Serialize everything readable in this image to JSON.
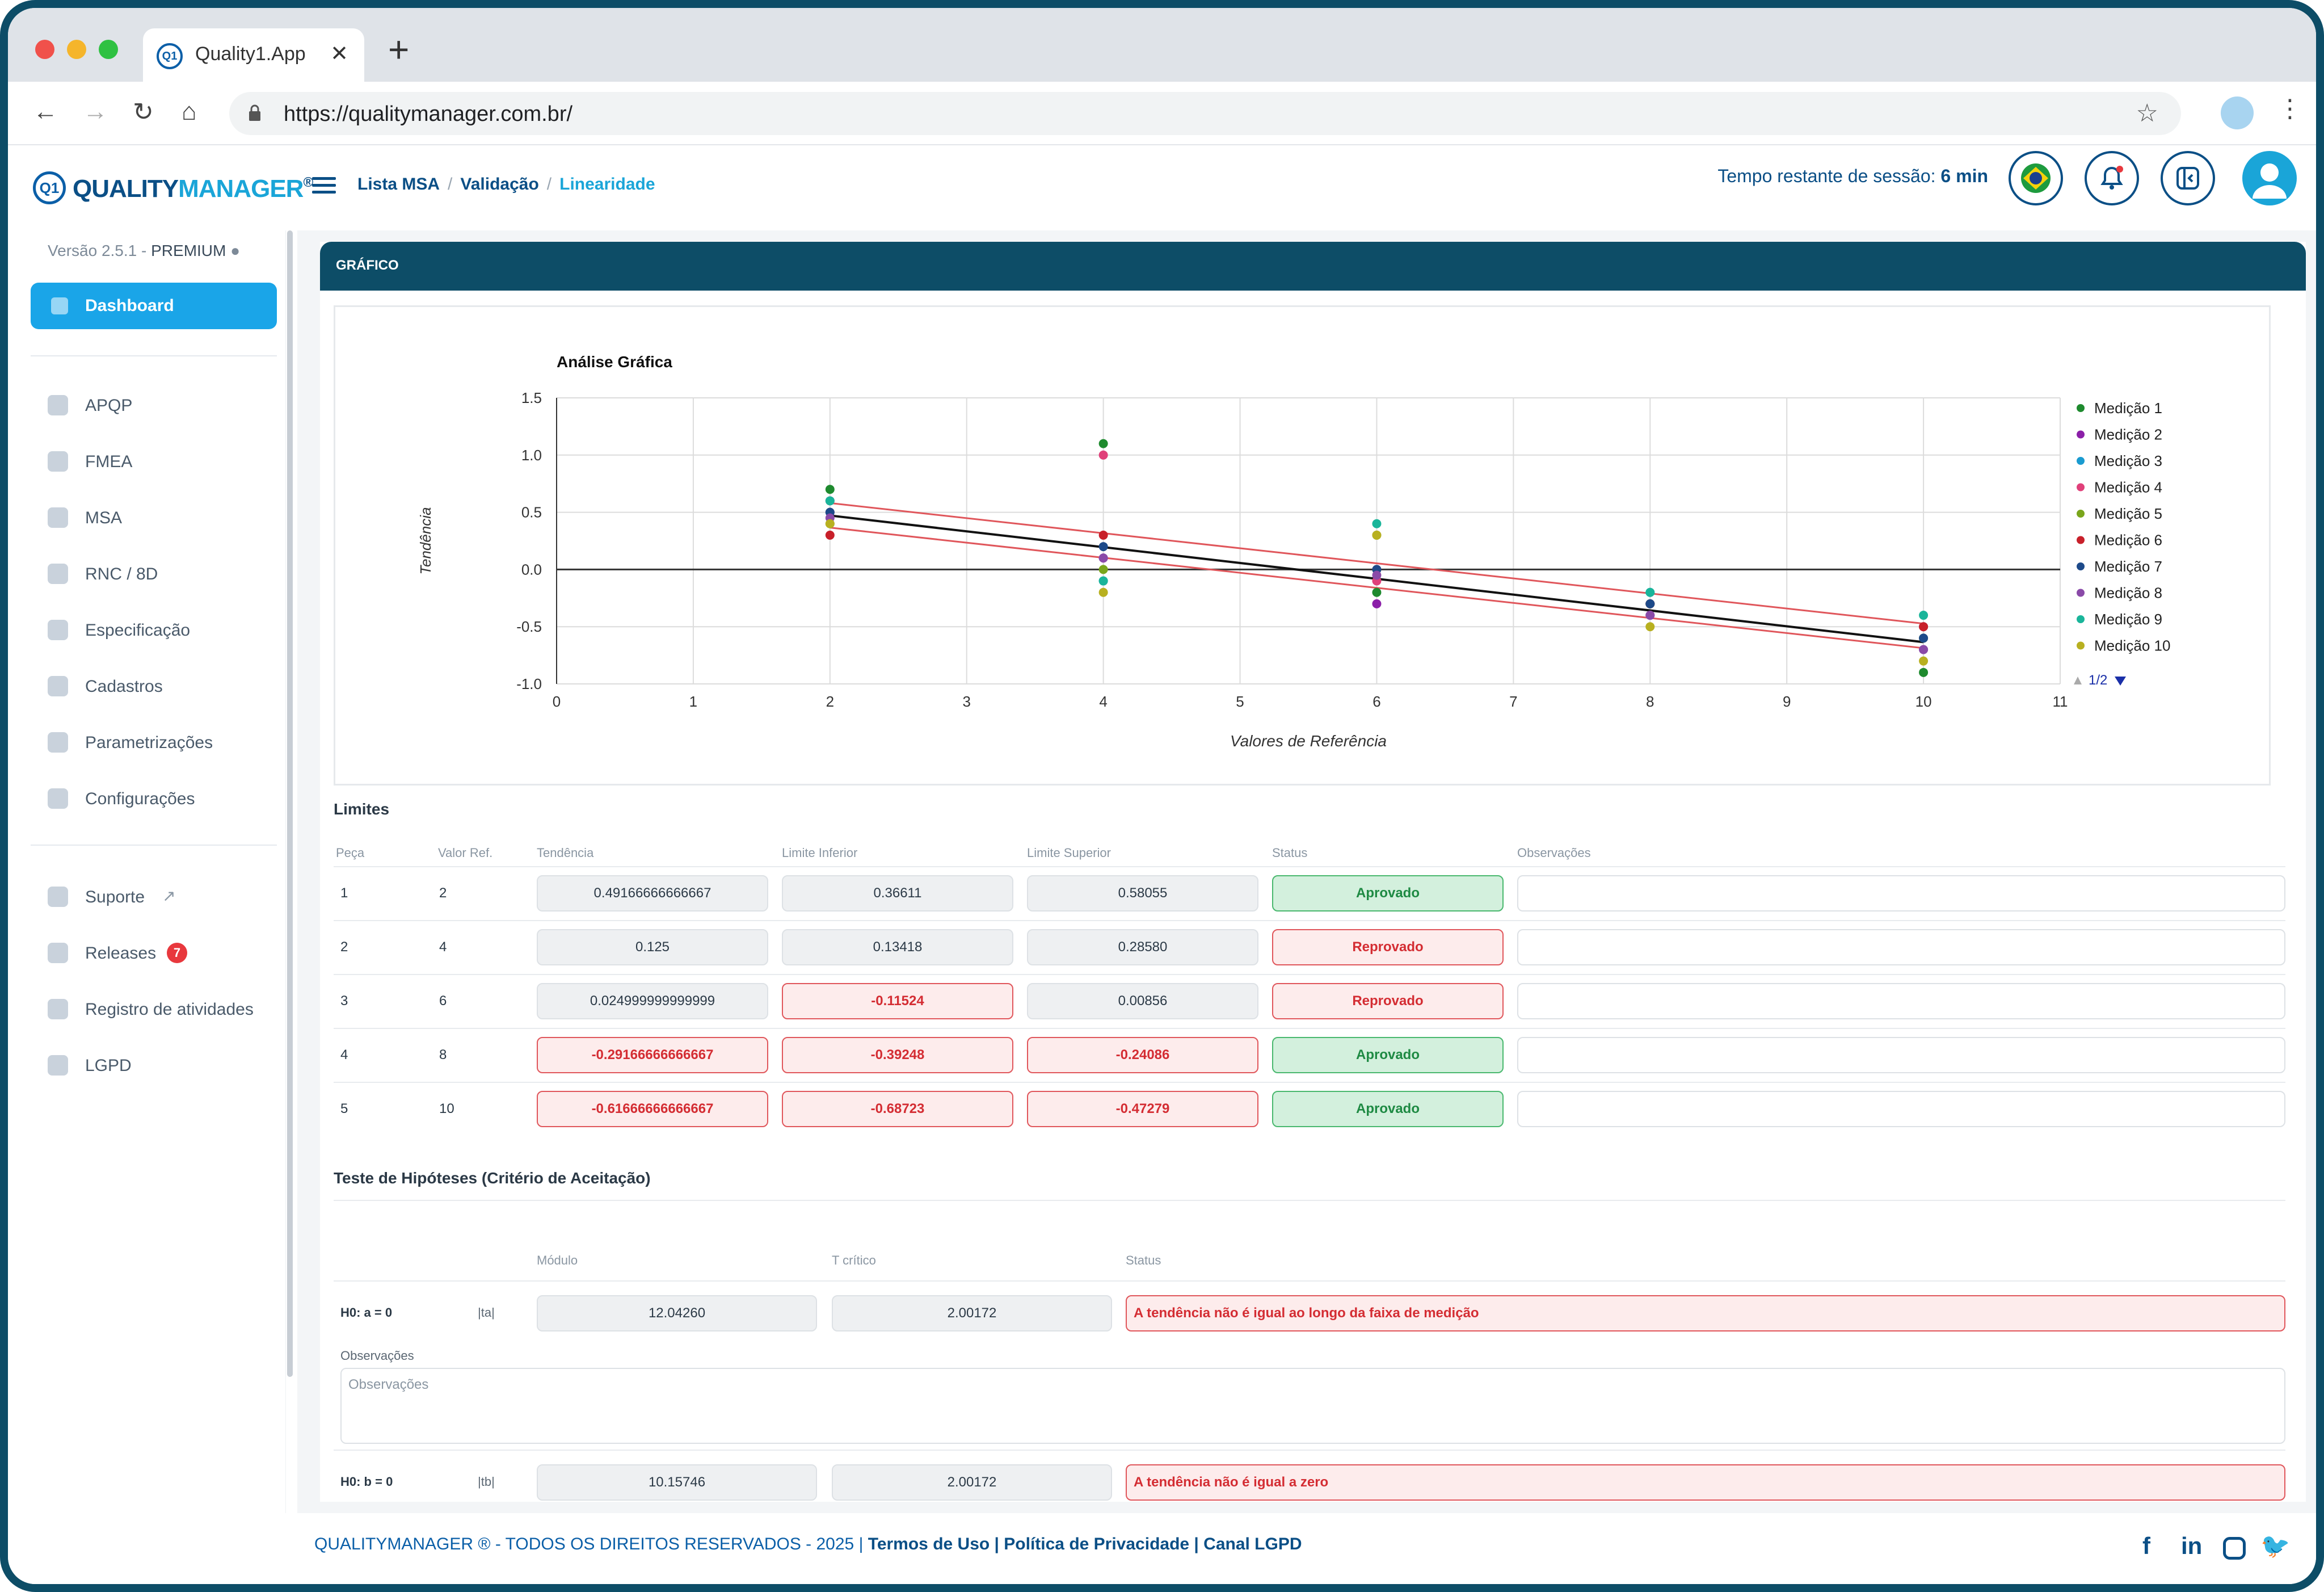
{
  "browser": {
    "tab_title": "Quality1.App",
    "tab_favicon": "Q1",
    "url": "https://qualitymanager.com.br/"
  },
  "header": {
    "logo_mark": "Q1",
    "logo_main": "QUALITY",
    "logo_accent": "MANAGER",
    "logo_reg": "®",
    "breadcrumb": [
      "Lista MSA",
      "Validação",
      "Linearidade"
    ],
    "session_label": "Tempo restante de sessão:",
    "session_value": "6 min"
  },
  "sidebar": {
    "version": "Versão 2.5.1 -",
    "plan": "PREMIUM",
    "dashboard_label": "Dashboard",
    "items": [
      {
        "label": "APQP",
        "icon": "apqp-icon"
      },
      {
        "label": "FMEA",
        "icon": "fmea-icon"
      },
      {
        "label": "MSA",
        "icon": "msa-icon"
      },
      {
        "label": "RNC / 8D",
        "icon": "rnc-icon"
      },
      {
        "label": "Especificação",
        "icon": "spec-icon"
      },
      {
        "label": "Cadastros",
        "icon": "cadastros-icon"
      },
      {
        "label": "Parametrizações",
        "icon": "params-icon"
      },
      {
        "label": "Configurações",
        "icon": "gear-icon"
      }
    ],
    "support_items": [
      {
        "label": "Suporte",
        "icon": "support-icon"
      },
      {
        "label": "Releases",
        "icon": "releases-icon",
        "badge": "7"
      },
      {
        "label": "Registro de atividades",
        "icon": "activity-icon"
      },
      {
        "label": "LGPD",
        "icon": "lgpd-icon"
      }
    ]
  },
  "card": {
    "title": "GRÁFICO"
  },
  "chart_data": {
    "type": "scatter",
    "title": "Análise Gráfica",
    "xlabel": "Valores de Referência",
    "ylabel": "Tendência",
    "xlim": [
      0,
      11
    ],
    "ylim": [
      -1.0,
      1.5
    ],
    "xticks": [
      0,
      1,
      2,
      3,
      4,
      5,
      6,
      7,
      8,
      9,
      10,
      11
    ],
    "yticks": [
      -1.0,
      -0.5,
      0.0,
      0.5,
      1.0,
      1.5
    ],
    "ytick_labels": [
      "-1.0",
      "-0.5",
      "0.0",
      "0.5",
      "1.0",
      "1.5"
    ],
    "grid": true,
    "legend_position": "right",
    "legend_page": "1/2",
    "series": [
      {
        "name": "Medição 1",
        "color": "#1e8a2e",
        "points": [
          [
            2,
            0.7
          ],
          [
            4,
            1.1
          ],
          [
            6,
            -0.2
          ],
          [
            8,
            -0.3
          ],
          [
            10,
            -0.9
          ]
        ]
      },
      {
        "name": "Medição 2",
        "color": "#8b1fa8",
        "points": [
          [
            2,
            0.6
          ],
          [
            4,
            0.1
          ],
          [
            6,
            -0.3
          ],
          [
            8,
            -0.4
          ],
          [
            10,
            -0.7
          ]
        ]
      },
      {
        "name": "Medição 3",
        "color": "#1a9bd0",
        "points": [
          [
            2,
            0.5
          ],
          [
            4,
            -0.1
          ],
          [
            6,
            0.0
          ],
          [
            8,
            -0.2
          ],
          [
            10,
            -0.5
          ]
        ]
      },
      {
        "name": "Medição 4",
        "color": "#e0407a",
        "points": [
          [
            2,
            0.5
          ],
          [
            4,
            1.0
          ],
          [
            6,
            -0.1
          ],
          [
            8,
            -0.3
          ],
          [
            10,
            -0.5
          ]
        ]
      },
      {
        "name": "Medição 5",
        "color": "#7aa61c",
        "points": [
          [
            2,
            0.4
          ],
          [
            4,
            0.0
          ],
          [
            6,
            0.3
          ],
          [
            8,
            -0.3
          ],
          [
            10,
            -0.6
          ]
        ]
      },
      {
        "name": "Medição 6",
        "color": "#c8202a",
        "points": [
          [
            2,
            0.3
          ],
          [
            4,
            0.3
          ],
          [
            6,
            0.0
          ],
          [
            8,
            -0.3
          ],
          [
            10,
            -0.5
          ]
        ]
      },
      {
        "name": "Medição 7",
        "color": "#1d4a8a",
        "points": [
          [
            2,
            0.5
          ],
          [
            4,
            0.2
          ],
          [
            6,
            0.0
          ],
          [
            8,
            -0.3
          ],
          [
            10,
            -0.6
          ]
        ]
      },
      {
        "name": "Medição 8",
        "color": "#8a4aa8",
        "points": [
          [
            2,
            0.45
          ],
          [
            4,
            0.1
          ],
          [
            6,
            -0.05
          ],
          [
            8,
            -0.4
          ],
          [
            10,
            -0.7
          ]
        ]
      },
      {
        "name": "Medição 9",
        "color": "#1ab59a",
        "points": [
          [
            2,
            0.6
          ],
          [
            4,
            -0.1
          ],
          [
            6,
            0.4
          ],
          [
            8,
            -0.2
          ],
          [
            10,
            -0.4
          ]
        ]
      },
      {
        "name": "Medição 10",
        "color": "#b8b020",
        "points": [
          [
            2,
            0.4
          ],
          [
            4,
            -0.2
          ],
          [
            6,
            0.3
          ],
          [
            8,
            -0.5
          ],
          [
            10,
            -0.8
          ]
        ]
      }
    ],
    "fit_line": {
      "color": "#111111",
      "points": [
        [
          2,
          0.4917
        ],
        [
          4,
          0.125
        ],
        [
          6,
          0.025
        ],
        [
          8,
          -0.2917
        ],
        [
          10,
          -0.6167
        ]
      ],
      "slope": -0.1383,
      "intercept": 0.7483
    },
    "limit_lines": [
      {
        "name": "Limite Superior",
        "color": "#e0565b",
        "from": [
          2,
          0.58055
        ],
        "to": [
          10,
          -0.47279
        ]
      },
      {
        "name": "Limite Inferior",
        "color": "#e0565b",
        "from": [
          2,
          0.36611
        ],
        "to": [
          10,
          -0.68723
        ]
      }
    ]
  },
  "limits": {
    "title": "Limites",
    "headers": [
      "Peça",
      "Valor Ref.",
      "Tendência",
      "Limite Inferior",
      "Limite Superior",
      "Status",
      "Observações"
    ],
    "rows": [
      {
        "peca": "1",
        "ref": "2",
        "tendencia": "0.49166666666667",
        "inferior": "0.36611",
        "superior": "0.58055",
        "status": "Aprovado",
        "tend_bad": false,
        "inf_bad": false,
        "sup_bad": false,
        "ok": true
      },
      {
        "peca": "2",
        "ref": "4",
        "tendencia": "0.125",
        "inferior": "0.13418",
        "superior": "0.28580",
        "status": "Reprovado",
        "tend_bad": false,
        "inf_bad": false,
        "sup_bad": false,
        "ok": false
      },
      {
        "peca": "3",
        "ref": "6",
        "tendencia": "0.024999999999999",
        "inferior": "-0.11524",
        "superior": "0.00856",
        "status": "Reprovado",
        "tend_bad": false,
        "inf_bad": true,
        "sup_bad": false,
        "ok": false
      },
      {
        "peca": "4",
        "ref": "8",
        "tendencia": "-0.29166666666667",
        "inferior": "-0.39248",
        "superior": "-0.24086",
        "status": "Aprovado",
        "tend_bad": true,
        "inf_bad": true,
        "sup_bad": true,
        "ok": true
      },
      {
        "peca": "5",
        "ref": "10",
        "tendencia": "-0.61666666666667",
        "inferior": "-0.68723",
        "superior": "-0.47279",
        "status": "Aprovado",
        "tend_bad": true,
        "inf_bad": true,
        "sup_bad": true,
        "ok": true
      }
    ]
  },
  "hypothesis": {
    "title": "Teste de Hipóteses (Critério de Aceitação)",
    "headers": [
      "Módulo",
      "T crítico",
      "Status"
    ],
    "h0a": {
      "label": "H0: a = 0",
      "stat": "|ta|",
      "modulo": "12.04260",
      "tcritico": "2.00172",
      "status": "A tendência  não é igual ao longo da faixa de medição"
    },
    "obs_label": "Observações",
    "obs_placeholder": "Observações",
    "h0b": {
      "label": "H0: b = 0",
      "stat": "|tb|",
      "modulo": "10.15746",
      "tcritico": "2.00172",
      "status": "A tendência não é igual a zero"
    }
  },
  "footer": {
    "copyright": "QUALITYMANAGER ® - TODOS OS DIREITOS RESERVADOS - 2025 |",
    "links": "Termos de Uso | Política de Privacidade | Canal LGPD"
  }
}
